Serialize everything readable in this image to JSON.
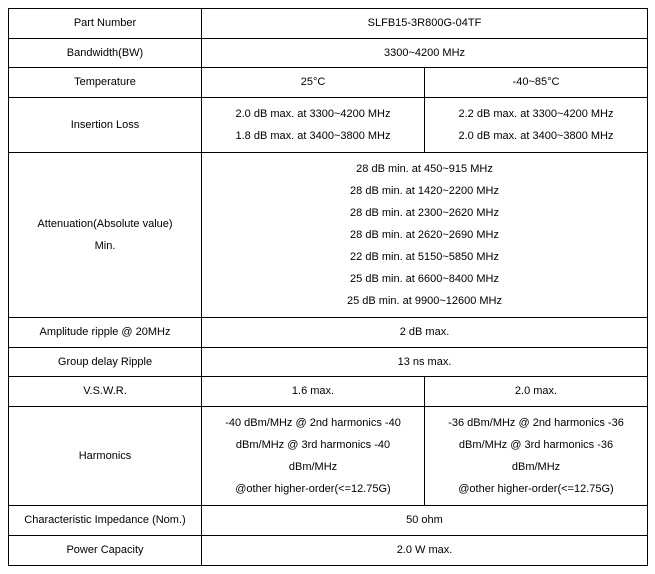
{
  "rows": {
    "part_number": {
      "label": "Part Number",
      "value": "SLFB15-3R800G-04TF"
    },
    "bandwidth": {
      "label": "Bandwidth(BW)",
      "value": "3300~4200 MHz"
    },
    "temperature": {
      "label": "Temperature",
      "col1": "25°C",
      "col2": "-40~85°C"
    },
    "insertion_loss": {
      "label": "Insertion Loss",
      "col1_line1": "2.0 dB max. at 3300~4200 MHz",
      "col1_line2": "1.8 dB max. at 3400~3800 MHz",
      "col2_line1": "2.2 dB max. at 3300~4200 MHz",
      "col2_line2": "2.0 dB max. at 3400~3800 MHz"
    },
    "attenuation": {
      "label_line1": "Attenuation(Absolute value)",
      "label_line2": "Min.",
      "l1": "28 dB min. at 450~915 MHz",
      "l2": "28 dB min. at 1420~2200 MHz",
      "l3": "28 dB min. at 2300~2620 MHz",
      "l4": "28 dB min. at 2620~2690 MHz",
      "l5": "22 dB min. at 5150~5850 MHz",
      "l6": "25 dB min. at 6600~8400 MHz",
      "l7": "25 dB min. at 9900~12600 MHz"
    },
    "amplitude_ripple": {
      "label": "Amplitude ripple @ 20MHz",
      "value": "2 dB max."
    },
    "group_delay": {
      "label": "Group delay Ripple",
      "value": "13 ns max."
    },
    "vswr": {
      "label": "V.S.W.R.",
      "col1": "1.6 max.",
      "col2": "2.0 max."
    },
    "harmonics": {
      "label": "Harmonics",
      "col1_l1": "-40 dBm/MHz @ 2nd harmonics -40",
      "col1_l2": "dBm/MHz @ 3rd harmonics   -40",
      "col1_l3": "dBm/MHz",
      "col1_l4": "@other higher-order(<=12.75G)",
      "col2_l1": "-36 dBm/MHz @ 2nd harmonics -36",
      "col2_l2": "dBm/MHz @ 3rd harmonics   -36",
      "col2_l3": "dBm/MHz",
      "col2_l4": "@other higher-order(<=12.75G)"
    },
    "impedance": {
      "label": "Characteristic Impedance (Nom.)",
      "value": "50 ohm"
    },
    "power": {
      "label": "Power Capacity",
      "value": "2.0 W max."
    }
  }
}
